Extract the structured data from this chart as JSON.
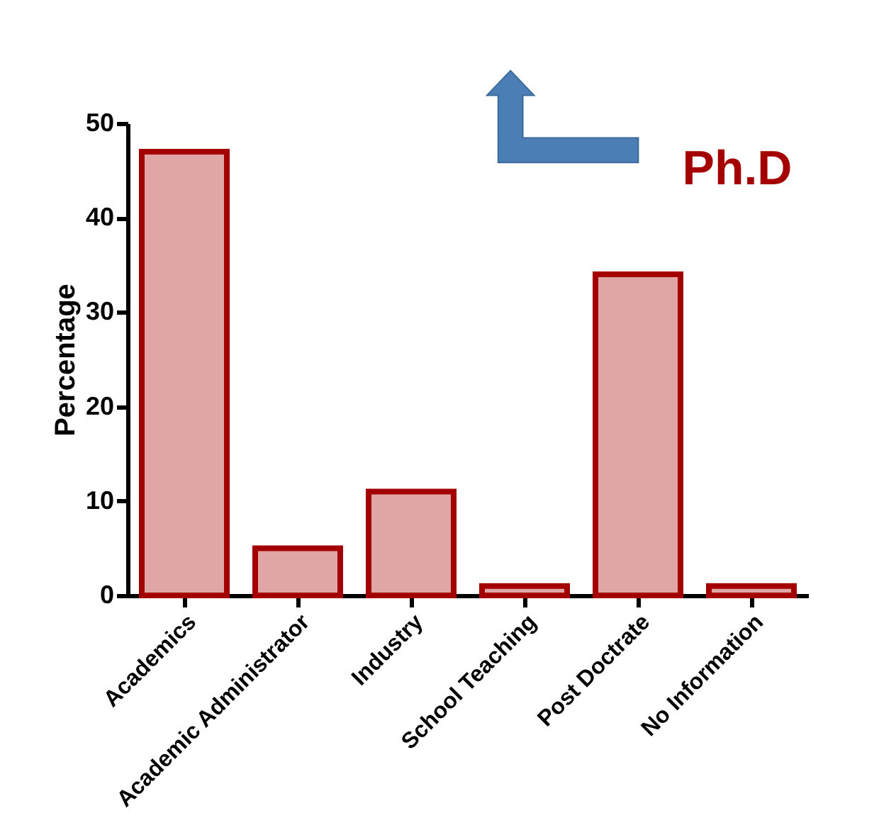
{
  "chart_data": {
    "type": "bar",
    "ylabel": "Percentage",
    "categories": [
      "Academics",
      "Academic Administrator",
      "Industry",
      "School Teaching",
      "Post Doctrate",
      "No Information"
    ],
    "values": [
      47,
      5,
      11,
      1,
      34,
      1
    ],
    "color": "#a50000",
    "ylim": [
      0,
      50
    ],
    "yticks": [
      0,
      10,
      20,
      30,
      40,
      50
    ],
    "grid": false,
    "annotations": [
      "Ph.D"
    ]
  }
}
